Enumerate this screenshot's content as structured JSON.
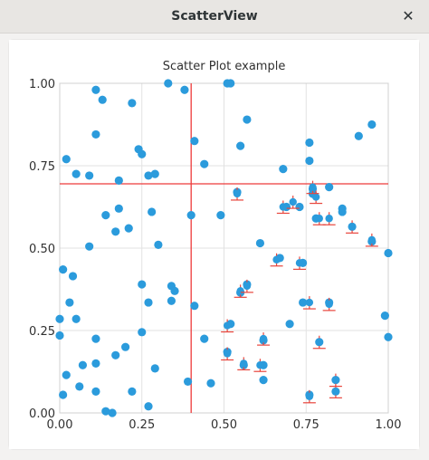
{
  "window": {
    "title": "ScatterView",
    "close_icon": "close-icon"
  },
  "colors": {
    "point": "#2b9bdc",
    "error_bar": "#e8453c",
    "crosshair": "#ee3b3b",
    "grid": "#e2e2e2",
    "background": "#ffffff"
  },
  "chart_data": {
    "type": "scatter",
    "title": "Scatter Plot example",
    "xlabel": "",
    "ylabel": "",
    "xlim": [
      0,
      1
    ],
    "ylim": [
      0,
      1
    ],
    "x_ticks": [
      "0.00",
      "0.25",
      "0.50",
      "0.75",
      "1.00"
    ],
    "y_ticks": [
      "0.00",
      "0.25",
      "0.50",
      "0.75",
      "1.00"
    ],
    "grid": true,
    "crosshair": {
      "x": 0.4,
      "y": 0.695
    },
    "points": [
      [
        0.02,
        0.77
      ],
      [
        0.05,
        0.725
      ],
      [
        0.09,
        0.72
      ],
      [
        0.11,
        0.98
      ],
      [
        0.13,
        0.95
      ],
      [
        0.11,
        0.845
      ],
      [
        0.22,
        0.94
      ],
      [
        0.24,
        0.8
      ],
      [
        0.25,
        0.785
      ],
      [
        0.27,
        0.72
      ],
      [
        0.29,
        0.725
      ],
      [
        0.18,
        0.705
      ],
      [
        0.33,
        1.0
      ],
      [
        0.38,
        0.98
      ],
      [
        0.52,
        1.0
      ],
      [
        0.51,
        1.0
      ],
      [
        0.57,
        0.89
      ],
      [
        0.41,
        0.825
      ],
      [
        0.44,
        0.755
      ],
      [
        0.55,
        0.81
      ],
      [
        0.68,
        0.74
      ],
      [
        0.76,
        0.82
      ],
      [
        0.76,
        0.765
      ],
      [
        0.82,
        0.685
      ],
      [
        0.91,
        0.84
      ],
      [
        0.95,
        0.875
      ],
      [
        0.54,
        0.67
      ],
      [
        0.69,
        0.625
      ],
      [
        0.73,
        0.625
      ],
      [
        0.77,
        0.68
      ],
      [
        0.77,
        0.665
      ],
      [
        0.78,
        0.59
      ],
      [
        0.86,
        0.62
      ],
      [
        0.86,
        0.61
      ],
      [
        0.89,
        0.565
      ],
      [
        0.95,
        0.52
      ],
      [
        1.0,
        0.485
      ],
      [
        0.14,
        0.6
      ],
      [
        0.18,
        0.62
      ],
      [
        0.21,
        0.56
      ],
      [
        0.17,
        0.55
      ],
      [
        0.09,
        0.505
      ],
      [
        0.3,
        0.51
      ],
      [
        0.28,
        0.61
      ],
      [
        0.4,
        0.6
      ],
      [
        0.49,
        0.6
      ],
      [
        0.61,
        0.515
      ],
      [
        0.67,
        0.47
      ],
      [
        0.74,
        0.455
      ],
      [
        0.01,
        0.435
      ],
      [
        0.04,
        0.415
      ],
      [
        0.03,
        0.335
      ],
      [
        0.05,
        0.285
      ],
      [
        0.0,
        0.285
      ],
      [
        0.0,
        0.235
      ],
      [
        0.25,
        0.39
      ],
      [
        0.27,
        0.335
      ],
      [
        0.34,
        0.385
      ],
      [
        0.35,
        0.37
      ],
      [
        0.34,
        0.34
      ],
      [
        0.41,
        0.325
      ],
      [
        0.55,
        0.365
      ],
      [
        0.57,
        0.39
      ],
      [
        0.74,
        0.335
      ],
      [
        0.82,
        0.335
      ],
      [
        0.52,
        0.27
      ],
      [
        0.7,
        0.27
      ],
      [
        0.62,
        0.22
      ],
      [
        0.79,
        0.215
      ],
      [
        0.99,
        0.295
      ],
      [
        1.0,
        0.23
      ],
      [
        0.11,
        0.225
      ],
      [
        0.25,
        0.245
      ],
      [
        0.2,
        0.2
      ],
      [
        0.17,
        0.175
      ],
      [
        0.11,
        0.15
      ],
      [
        0.07,
        0.145
      ],
      [
        0.02,
        0.115
      ],
      [
        0.29,
        0.135
      ],
      [
        0.44,
        0.225
      ],
      [
        0.51,
        0.185
      ],
      [
        0.56,
        0.145
      ],
      [
        0.62,
        0.145
      ],
      [
        0.62,
        0.1
      ],
      [
        0.76,
        0.055
      ],
      [
        0.84,
        0.1
      ],
      [
        0.84,
        0.065
      ],
      [
        0.06,
        0.08
      ],
      [
        0.11,
        0.065
      ],
      [
        0.22,
        0.065
      ],
      [
        0.39,
        0.095
      ],
      [
        0.46,
        0.09
      ],
      [
        0.27,
        0.02
      ],
      [
        0.14,
        0.005
      ],
      [
        0.16,
        0.0
      ],
      [
        0.01,
        0.055
      ]
    ],
    "error_bars": [
      [
        0.54,
        0.665
      ],
      [
        0.68,
        0.625
      ],
      [
        0.71,
        0.64
      ],
      [
        0.78,
        0.655
      ],
      [
        0.77,
        0.685
      ],
      [
        0.79,
        0.59
      ],
      [
        0.82,
        0.59
      ],
      [
        0.89,
        0.565
      ],
      [
        0.95,
        0.525
      ],
      [
        0.66,
        0.465
      ],
      [
        0.73,
        0.455
      ],
      [
        0.55,
        0.37
      ],
      [
        0.57,
        0.385
      ],
      [
        0.76,
        0.335
      ],
      [
        0.82,
        0.33
      ],
      [
        0.51,
        0.265
      ],
      [
        0.62,
        0.225
      ],
      [
        0.79,
        0.215
      ],
      [
        0.51,
        0.18
      ],
      [
        0.56,
        0.15
      ],
      [
        0.61,
        0.145
      ],
      [
        0.76,
        0.05
      ],
      [
        0.84,
        0.1
      ],
      [
        0.84,
        0.065
      ]
    ]
  }
}
